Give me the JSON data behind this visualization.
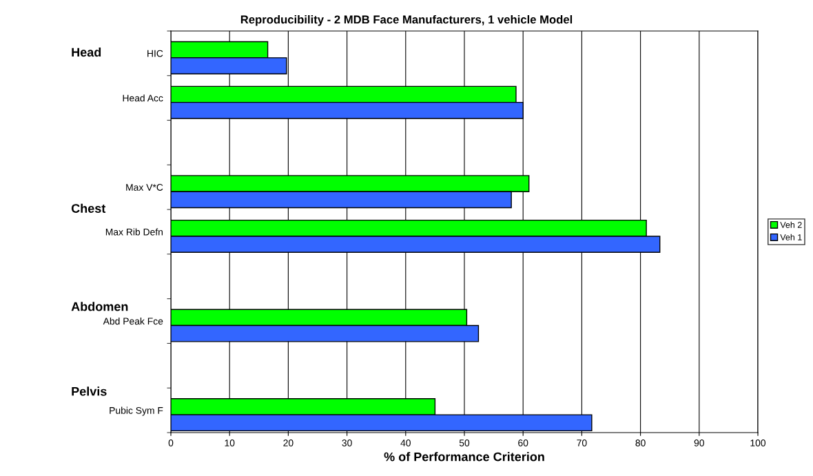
{
  "chart_data": {
    "type": "bar",
    "orientation": "horizontal",
    "title": "Reproducibility - 2 MDB Face Manufacturers, 1 vehicle Model",
    "xlabel": "% of Performance Criterion",
    "categories": [
      "HIC",
      "Head Acc",
      null,
      "Max V*C",
      "Max Rib Defn",
      null,
      "Abd Peak Fce",
      null,
      "Pubic Sym F"
    ],
    "series": [
      {
        "name": "Veh 2",
        "color": "#00ff00",
        "values": [
          16.5,
          58.8,
          null,
          61,
          81,
          null,
          50.4,
          null,
          45
        ]
      },
      {
        "name": "Veh 1",
        "color": "#3366ff",
        "values": [
          19.7,
          60,
          null,
          58,
          83.3,
          null,
          52.4,
          null,
          71.7
        ]
      }
    ],
    "xlim": [
      0,
      100
    ],
    "xticks": [
      0,
      10,
      20,
      30,
      40,
      50,
      60,
      70,
      80,
      90,
      100
    ],
    "grid": "x",
    "legend": "right",
    "annotations": [
      "Head",
      "Chest",
      "Abdomen",
      "Pelvis"
    ]
  }
}
